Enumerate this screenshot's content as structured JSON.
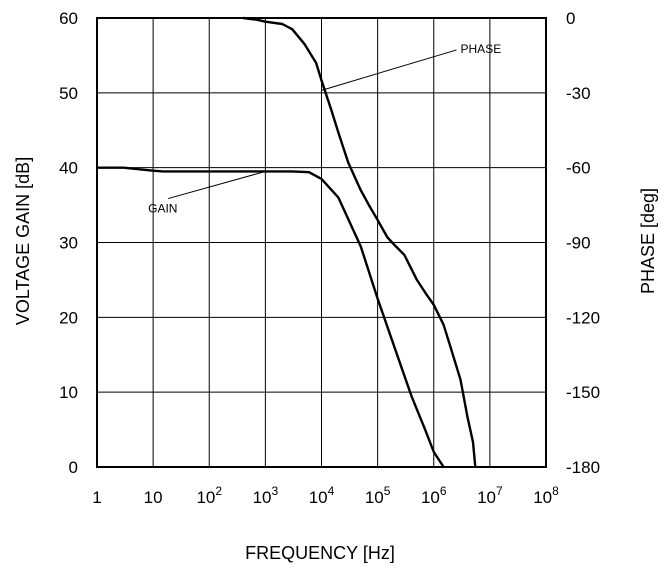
{
  "chart_data": {
    "type": "line",
    "xlabel": "FREQUENCY [Hz]",
    "ylabel_left": "VOLTAGE GAIN [dB]",
    "ylabel_right": "PHASE [deg]",
    "x_scale": "log",
    "xlim": [
      1,
      100000000
    ],
    "ylim_left": [
      0,
      60
    ],
    "ylim_right": [
      -180,
      0
    ],
    "grid": true,
    "x_ticks": [
      {
        "value": 1,
        "base": "1",
        "exp": ""
      },
      {
        "value": 10,
        "base": "10",
        "exp": ""
      },
      {
        "value": 100,
        "base": "10",
        "exp": "2"
      },
      {
        "value": 1000,
        "base": "10",
        "exp": "3"
      },
      {
        "value": 10000,
        "base": "10",
        "exp": "4"
      },
      {
        "value": 100000,
        "base": "10",
        "exp": "5"
      },
      {
        "value": 1000000,
        "base": "10",
        "exp": "6"
      },
      {
        "value": 10000000,
        "base": "10",
        "exp": "7"
      },
      {
        "value": 100000000,
        "base": "10",
        "exp": "8"
      }
    ],
    "y_ticks_left": [
      "0",
      "10",
      "20",
      "30",
      "40",
      "50",
      "60"
    ],
    "y_ticks_right": [
      "-180",
      "-150",
      "-120",
      "-90",
      "-60",
      "-30",
      "0"
    ],
    "series": [
      {
        "name": "GAIN",
        "axis": "left",
        "x": [
          1,
          3,
          10,
          15,
          100,
          1000,
          3000,
          6000,
          10000,
          20000,
          50000,
          100000,
          200000,
          400000,
          700000,
          1000000,
          1500000
        ],
        "y": [
          40,
          40,
          39.6,
          39.5,
          39.5,
          39.5,
          39.5,
          39.4,
          38.5,
          36,
          29.5,
          22.5,
          16,
          9.5,
          5,
          2,
          0
        ]
      },
      {
        "name": "PHASE",
        "axis": "right",
        "x": [
          400,
          700,
          1000,
          2000,
          3000,
          5000,
          8000,
          10000,
          15000,
          20000,
          30000,
          50000,
          70000,
          100000,
          150000,
          200000,
          300000,
          500000,
          700000,
          1000000,
          1500000,
          2000000,
          3000000,
          4000000,
          5000000,
          5500000
        ],
        "y": [
          0,
          -0.7,
          -1.5,
          -2.4,
          -4.5,
          -10.5,
          -18,
          -25,
          -37,
          -46,
          -58,
          -69,
          -75,
          -81,
          -88,
          -91,
          -95,
          -105,
          -110,
          -115,
          -123,
          -132,
          -145,
          -160,
          -170,
          -180
        ]
      }
    ],
    "annotations": [
      {
        "text": "PHASE",
        "series": "PHASE",
        "label_x": 3000000,
        "label_y": -12,
        "point_x": 10000,
        "point_y": -29
      },
      {
        "text": "GAIN",
        "series": "GAIN",
        "label_x": 10,
        "label_y": 34,
        "point_x": 1000,
        "point_y": 39.5
      }
    ]
  }
}
